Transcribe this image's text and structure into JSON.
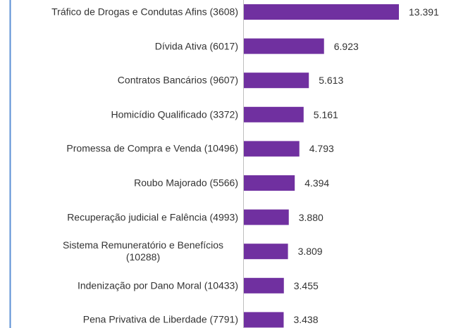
{
  "chart_data": {
    "type": "bar",
    "orientation": "horizontal",
    "categories": [
      "Tráfico de Drogas e Condutas Afins (3608)",
      "Dívida Ativa (6017)",
      "Contratos Bancários (9607)",
      "Homicídio Qualificado (3372)",
      "Promessa de Compra e Venda (10496)",
      "Roubo Majorado (5566)",
      "Recuperação judicial e Falência (4993)",
      "Sistema Remuneratório e Benefícios (10288)",
      "Indenização por Dano Moral (10433)",
      "Pena Privativa de Liberdade (7791)"
    ],
    "values": [
      13391,
      6923,
      5613,
      5161,
      4793,
      4394,
      3880,
      3809,
      3455,
      3438
    ],
    "value_labels": [
      "13.391",
      "6.923",
      "5.613",
      "5.161",
      "4.793",
      "4.394",
      "3.880",
      "3.809",
      "3.455",
      "3.438"
    ],
    "color": "#7030a0"
  }
}
